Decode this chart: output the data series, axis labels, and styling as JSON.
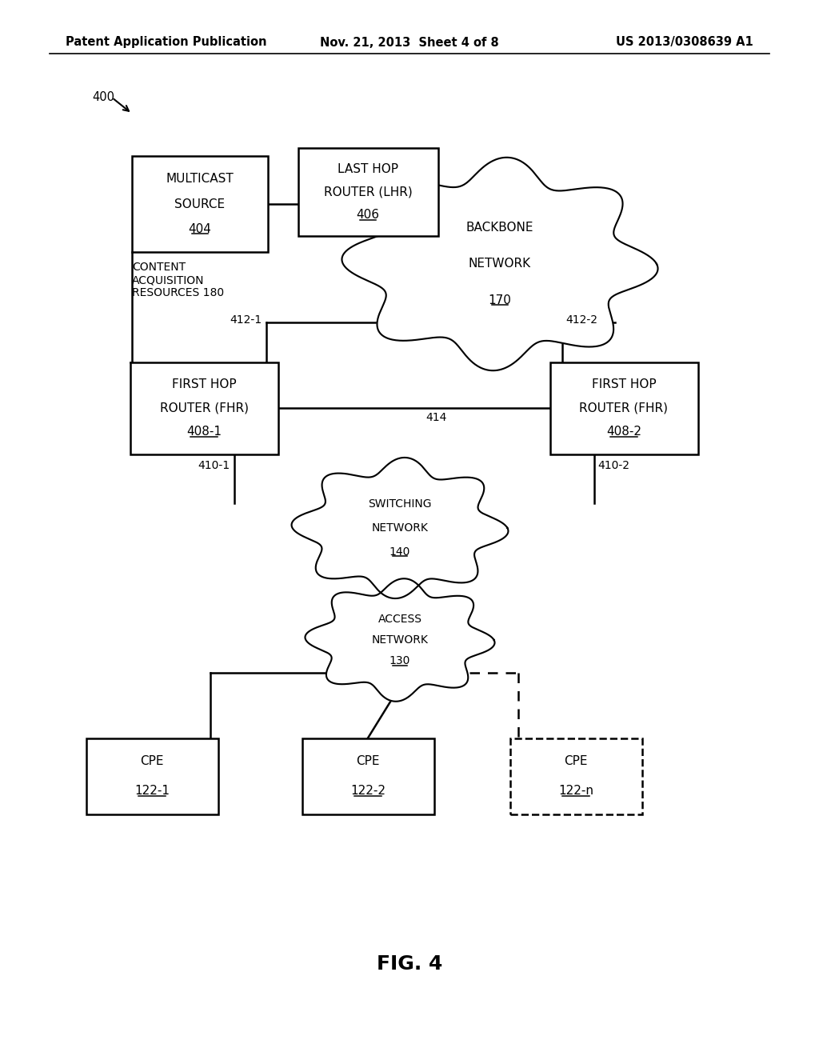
{
  "header_left": "Patent Application Publication",
  "header_mid": "Nov. 21, 2013  Sheet 4 of 8",
  "header_right": "US 2013/0308639 A1",
  "fig_label": "FIG. 4",
  "diagram_label": "400",
  "bg_color": "#ffffff",
  "line_color": "#000000"
}
